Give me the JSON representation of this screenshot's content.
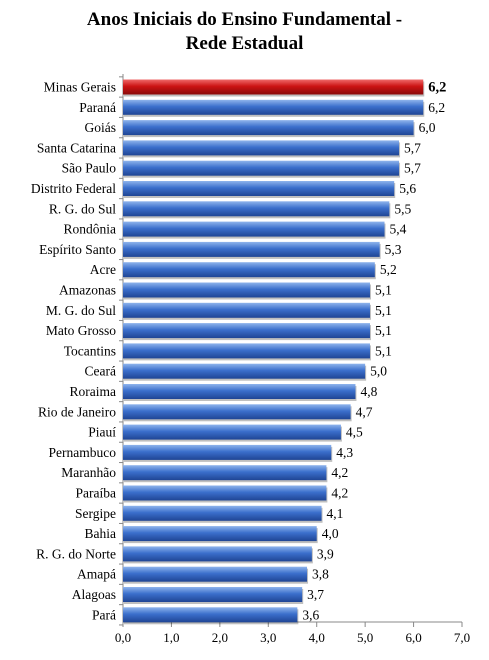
{
  "chart_data": {
    "type": "bar",
    "orientation": "horizontal",
    "title_lines": [
      "Anos Iniciais do Ensino Fundamental -",
      "Rede Estadual"
    ],
    "categories": [
      "Minas Gerais",
      "Paraná",
      "Goiás",
      "Santa Catarina",
      "São Paulo",
      "Distrito Federal",
      "R. G. do Sul",
      "Rondônia",
      "Espírito Santo",
      "Acre",
      "Amazonas",
      "M. G. do Sul",
      "Mato Grosso",
      "Tocantins",
      "Ceará",
      "Roraima",
      "Rio de Janeiro",
      "Piauí",
      "Pernambuco",
      "Maranhão",
      "Paraíba",
      "Sergipe",
      "Bahia",
      "R. G. do Norte",
      "Amapá",
      "Alagoas",
      "Pará"
    ],
    "values": [
      6.2,
      6.2,
      6.0,
      5.7,
      5.7,
      5.6,
      5.5,
      5.4,
      5.3,
      5.2,
      5.1,
      5.1,
      5.1,
      5.1,
      5.0,
      4.8,
      4.7,
      4.5,
      4.3,
      4.2,
      4.2,
      4.1,
      4.0,
      3.9,
      3.8,
      3.7,
      3.6
    ],
    "value_labels": [
      "6,2",
      "6,2",
      "6,0",
      "5,7",
      "5,7",
      "5,6",
      "5,5",
      "5,4",
      "5,3",
      "5,2",
      "5,1",
      "5,1",
      "5,1",
      "5,1",
      "5,0",
      "4,8",
      "4,7",
      "4,5",
      "4,3",
      "4,2",
      "4,2",
      "4,1",
      "4,0",
      "3,9",
      "3,8",
      "3,7",
      "3,6"
    ],
    "highlight_category": "Minas Gerais",
    "xlim": [
      0,
      7
    ],
    "x_ticks": [
      0,
      1,
      2,
      3,
      4,
      5,
      6,
      7
    ],
    "x_tick_labels": [
      "0,0",
      "1,0",
      "2,0",
      "3,0",
      "4,0",
      "5,0",
      "6,0",
      "7,0"
    ],
    "colors": {
      "bar": "#3b6fcc",
      "bar_light": "#8fb4ec",
      "bar_dark": "#1f4594",
      "highlight": "#cc1414",
      "highlight_light": "#f06a6a",
      "highlight_dark": "#8a0a0a"
    }
  }
}
